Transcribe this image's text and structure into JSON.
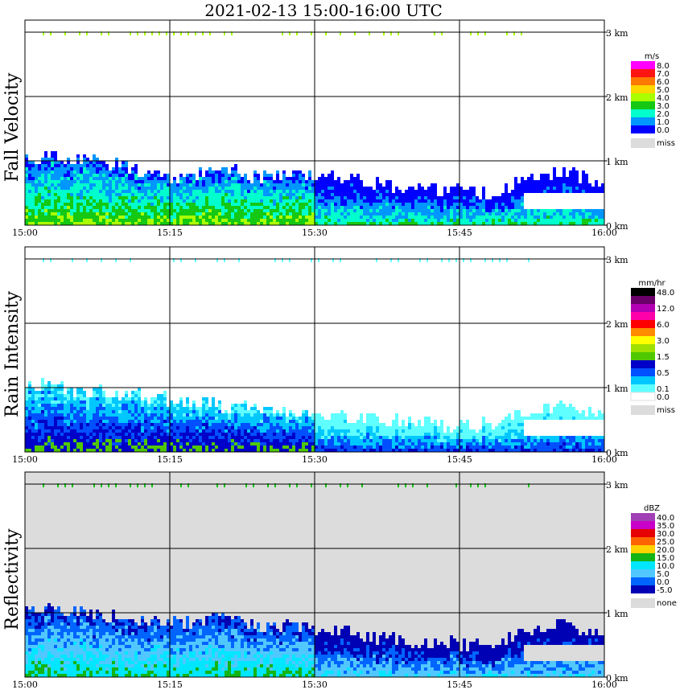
{
  "title": "2021-02-13   15:00-16:00 UTC",
  "chart_data": [
    {
      "type": "heatmap",
      "ylabel": "Fall Velocity",
      "unit": "m/s",
      "background": "#ffffff",
      "x_ticks": [
        "15:00",
        "15:15",
        "15:30",
        "15:45",
        "16:00"
      ],
      "y_ticks": [
        "0 km",
        "1 km",
        "2 km",
        "3 km"
      ],
      "ylim_km": [
        0,
        3.05
      ],
      "legend": [
        {
          "label": "8.0",
          "color": "#ff00ff"
        },
        {
          "label": "7.0",
          "color": "#ff1414"
        },
        {
          "label": "6.0",
          "color": "#ff7800"
        },
        {
          "label": "5.0",
          "color": "#ffd700"
        },
        {
          "label": "4.0",
          "color": "#aaff00"
        },
        {
          "label": "3.0",
          "color": "#14c814"
        },
        {
          "label": "2.0",
          "color": "#00ffcc"
        },
        {
          "label": "1.0",
          "color": "#0096ff"
        },
        {
          "label": "0.0",
          "color": "#0000ff"
        }
      ],
      "miss_label": "miss",
      "echo_top_profile_km": [
        1.05,
        1.0,
        0.95,
        0.8,
        0.7,
        0.9,
        0.7,
        0.8,
        0.75,
        0.6,
        0.55,
        0.5,
        0.45,
        0.7,
        0.8,
        0.6
      ]
    },
    {
      "type": "heatmap",
      "ylabel": "Rain Intensity",
      "unit": "mm/hr",
      "background": "#ffffff",
      "x_ticks": [
        "15:00",
        "15:15",
        "15:30",
        "15:45",
        "16:00"
      ],
      "y_ticks": [
        "0 km",
        "1 km",
        "2 km",
        "3 km"
      ],
      "ylim_km": [
        0,
        3.05
      ],
      "legend": [
        {
          "label": "48.0",
          "color": "#000000"
        },
        {
          "label": "",
          "color": "#6a006a"
        },
        {
          "label": "12.0",
          "color": "#b400b4"
        },
        {
          "label": "",
          "color": "#ff00aa"
        },
        {
          "label": "6.0",
          "color": "#ff0000"
        },
        {
          "label": "",
          "color": "#ff8c00"
        },
        {
          "label": "3.0",
          "color": "#ffff00"
        },
        {
          "label": "",
          "color": "#a0e000"
        },
        {
          "label": "1.5",
          "color": "#50c800"
        },
        {
          "label": "",
          "color": "#0000c8"
        },
        {
          "label": "0.5",
          "color": "#0050ff"
        },
        {
          "label": "",
          "color": "#00c8ff"
        },
        {
          "label": "0.1",
          "color": "#60ffff"
        },
        {
          "label": "0.0",
          "color": "#ffffff"
        }
      ],
      "miss_label": "miss",
      "echo_top_profile_km": [
        1.05,
        0.95,
        0.9,
        0.85,
        0.75,
        0.7,
        0.65,
        0.6,
        0.55,
        0.5,
        0.45,
        0.4,
        0.4,
        0.6,
        0.7,
        0.5
      ]
    },
    {
      "type": "heatmap",
      "ylabel": "Reflectivity",
      "unit": "dBZ",
      "background": "#dcdcdc",
      "x_ticks": [
        "15:00",
        "15:15",
        "15:30",
        "15:45",
        "16:00"
      ],
      "y_ticks": [
        "0 km",
        "1 km",
        "2 km",
        "3 km"
      ],
      "ylim_km": [
        0,
        3.05
      ],
      "legend": [
        {
          "label": "40.0",
          "color": "#a040b4"
        },
        {
          "label": "35.0",
          "color": "#c800c8"
        },
        {
          "label": "30.0",
          "color": "#e60000"
        },
        {
          "label": "25.0",
          "color": "#ff6400"
        },
        {
          "label": "20.0",
          "color": "#ffd200"
        },
        {
          "label": "15.0",
          "color": "#14b414"
        },
        {
          "label": "10.0",
          "color": "#00e6ff"
        },
        {
          "label": "5.0",
          "color": "#50c8ff"
        },
        {
          "label": "0.0",
          "color": "#0064ff"
        },
        {
          "label": "-5.0",
          "color": "#0000b4"
        }
      ],
      "miss_label": "none",
      "echo_top_profile_km": [
        1.05,
        1.0,
        0.95,
        0.85,
        0.8,
        0.9,
        0.75,
        0.75,
        0.7,
        0.6,
        0.55,
        0.5,
        0.45,
        0.7,
        0.8,
        0.6
      ]
    }
  ]
}
